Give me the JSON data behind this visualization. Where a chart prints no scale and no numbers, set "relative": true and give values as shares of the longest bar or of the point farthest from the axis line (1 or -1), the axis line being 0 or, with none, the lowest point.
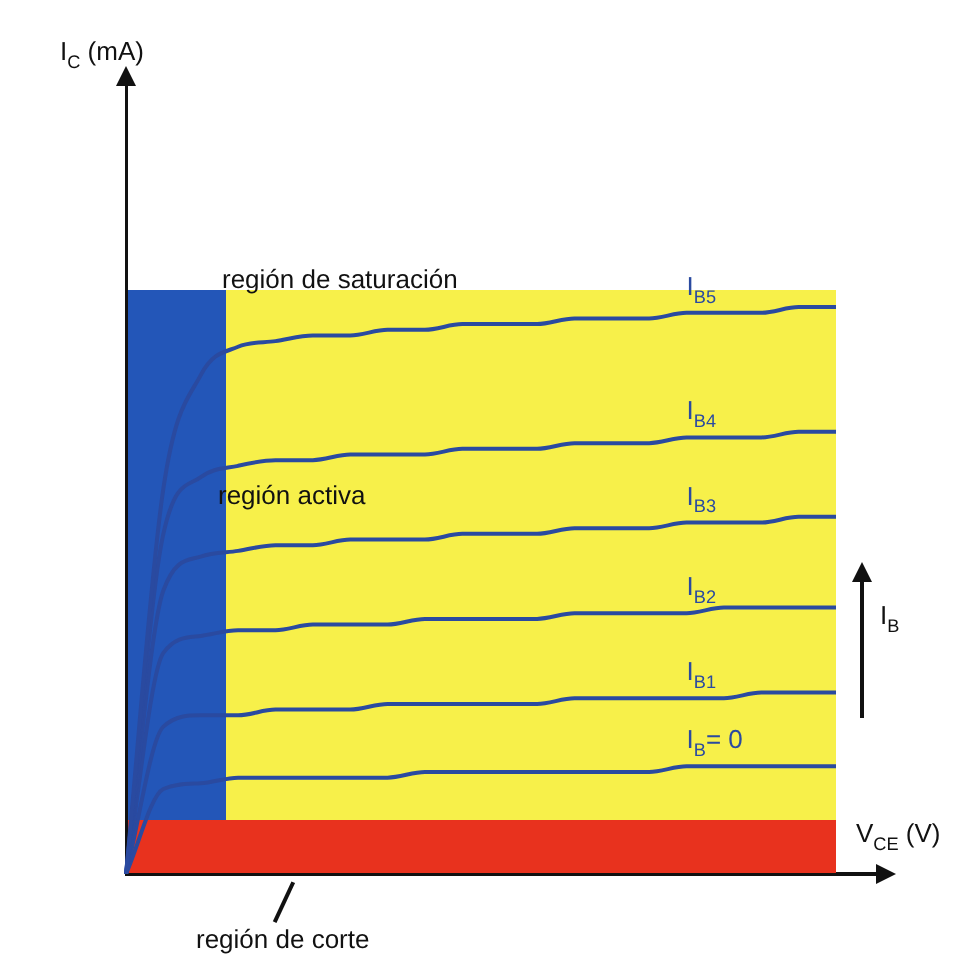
{
  "chart_data": {
    "type": "line",
    "relative": true,
    "xlabel": "V$_{CE}$ (V)",
    "categories": [
      null,
      null,
      null,
      null,
      null,
      null,
      null,
      null,
      null,
      null,
      null,
      null,
      null,
      null,
      null,
      null,
      null,
      null,
      null,
      null
    ],
    "series": [
      {
        "name": "I$_{B5}$",
        "color": "#2a4aa0",
        "values": [
          0,
          0.68,
          0.88,
          0.93,
          0.94,
          0.95,
          0.95,
          0.96,
          0.96,
          0.97,
          0.97,
          0.97,
          0.98,
          0.98,
          0.98,
          0.99,
          0.99,
          0.99,
          1.0,
          1.0
        ]
      },
      {
        "name": "I$_{B4}$",
        "color": "#2a4aa0",
        "values": [
          0,
          0.6,
          0.7,
          0.72,
          0.73,
          0.73,
          0.74,
          0.74,
          0.74,
          0.75,
          0.75,
          0.75,
          0.76,
          0.76,
          0.76,
          0.77,
          0.77,
          0.77,
          0.78,
          0.78
        ]
      },
      {
        "name": "I$_{B3}$",
        "color": "#2a4aa0",
        "values": [
          0,
          0.5,
          0.56,
          0.57,
          0.58,
          0.58,
          0.59,
          0.59,
          0.59,
          0.6,
          0.6,
          0.6,
          0.61,
          0.61,
          0.61,
          0.62,
          0.62,
          0.62,
          0.63,
          0.63
        ]
      },
      {
        "name": "I$_{B2}$",
        "color": "#2a4aa0",
        "values": [
          0,
          0.39,
          0.42,
          0.43,
          0.43,
          0.44,
          0.44,
          0.44,
          0.45,
          0.45,
          0.45,
          0.45,
          0.46,
          0.46,
          0.46,
          0.46,
          0.47,
          0.47,
          0.47,
          0.47
        ]
      },
      {
        "name": "I$_{B1}$",
        "color": "#2a4aa0",
        "values": [
          0,
          0.26,
          0.28,
          0.28,
          0.29,
          0.29,
          0.29,
          0.3,
          0.3,
          0.3,
          0.3,
          0.3,
          0.31,
          0.31,
          0.31,
          0.31,
          0.31,
          0.32,
          0.32,
          0.32
        ]
      },
      {
        "name": "I$_{B}$= 0",
        "color": "#2a4aa0",
        "values": [
          0,
          0.15,
          0.16,
          0.17,
          0.17,
          0.17,
          0.17,
          0.17,
          0.18,
          0.18,
          0.18,
          0.18,
          0.18,
          0.18,
          0.18,
          0.19,
          0.19,
          0.19,
          0.19,
          0.19
        ]
      }
    ],
    "annotations": [
      "I$_{C}$ (mA)",
      "región de saturación",
      "región activa",
      "región de corte",
      "I$_{B}$"
    ],
    "legend": false,
    "marker": "none",
    "line_style": "solid"
  }
}
